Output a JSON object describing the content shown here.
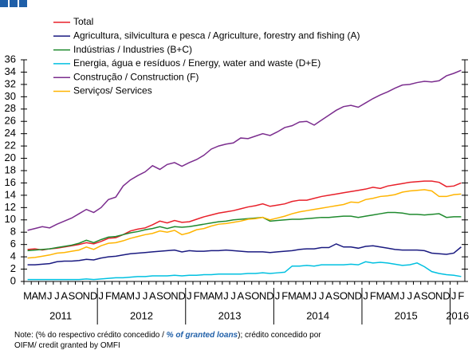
{
  "chart_data": {
    "type": "line",
    "categories": [
      "M",
      "A",
      "M",
      "J",
      "J",
      "A",
      "S",
      "O",
      "N",
      "D",
      "J",
      "F",
      "M",
      "A",
      "M",
      "J",
      "J",
      "A",
      "S",
      "O",
      "N",
      "D",
      "J",
      "F",
      "M",
      "A",
      "M",
      "J",
      "J",
      "A",
      "S",
      "O",
      "N",
      "D",
      "J",
      "F",
      "M",
      "A",
      "M",
      "J",
      "J",
      "A",
      "S",
      "O",
      "N",
      "D",
      "J",
      "F",
      "M",
      "A",
      "M",
      "J",
      "J",
      "A",
      "S",
      "O",
      "N",
      "D",
      "J",
      "F"
    ],
    "year_labels": [
      "2011",
      "2012",
      "2013",
      "2014",
      "2015",
      "2016"
    ],
    "ylim": [
      0,
      36
    ],
    "yticks": [
      0,
      2,
      4,
      6,
      8,
      10,
      12,
      14,
      16,
      18,
      20,
      22,
      24,
      26,
      28,
      30,
      32,
      34,
      36
    ],
    "grid": false,
    "series": [
      {
        "name": "Total",
        "color": "#e8202a",
        "values": [
          5.2,
          5.3,
          5.1,
          5.3,
          5.4,
          5.6,
          5.8,
          6.0,
          6.3,
          6.1,
          6.5,
          7.0,
          7.1,
          7.6,
          8.2,
          8.5,
          8.7,
          9.2,
          9.8,
          9.5,
          9.9,
          9.6,
          9.7,
          10.1,
          10.5,
          10.8,
          11.1,
          11.3,
          11.5,
          11.8,
          12.1,
          12.3,
          12.6,
          12.2,
          12.4,
          12.6,
          13.0,
          13.2,
          13.2,
          13.5,
          13.8,
          14.0,
          14.2,
          14.4,
          14.6,
          14.8,
          15.0,
          15.3,
          15.1,
          15.5,
          15.7,
          15.9,
          16.1,
          16.2,
          16.3,
          16.3,
          16.1,
          15.4,
          15.5,
          16.0
        ]
      },
      {
        "name": "Agricultura, silvicultura e pesca / Agriculture, forestry and fishing (A)",
        "color": "#1a1a80",
        "values": [
          2.7,
          2.7,
          2.8,
          2.9,
          3.2,
          3.3,
          3.3,
          3.4,
          3.6,
          3.5,
          3.8,
          4.0,
          4.1,
          4.3,
          4.5,
          4.6,
          4.7,
          4.8,
          4.9,
          5.0,
          5.1,
          4.8,
          5.0,
          4.9,
          4.9,
          5.0,
          5.0,
          5.1,
          5.0,
          4.9,
          4.8,
          4.8,
          4.8,
          4.7,
          4.8,
          4.9,
          5.0,
          5.2,
          5.3,
          5.3,
          5.5,
          5.5,
          6.1,
          5.6,
          5.6,
          5.4,
          5.7,
          5.8,
          5.6,
          5.4,
          5.2,
          5.1,
          5.1,
          5.1,
          5.0,
          4.6,
          4.5,
          4.4,
          4.6,
          5.6
        ]
      },
      {
        "name": "Indústrias / Industries (B+C)",
        "color": "#1f8a2e",
        "values": [
          5.0,
          5.1,
          5.2,
          5.3,
          5.5,
          5.7,
          5.9,
          6.2,
          6.7,
          6.3,
          6.8,
          7.2,
          7.3,
          7.6,
          7.9,
          8.1,
          8.4,
          8.6,
          8.9,
          8.6,
          8.9,
          8.8,
          8.9,
          9.1,
          9.3,
          9.5,
          9.7,
          9.8,
          10.0,
          10.1,
          10.2,
          10.3,
          10.4,
          9.8,
          9.9,
          10.0,
          10.1,
          10.1,
          10.2,
          10.3,
          10.4,
          10.4,
          10.5,
          10.6,
          10.6,
          10.4,
          10.6,
          10.8,
          11.0,
          11.2,
          11.2,
          11.1,
          10.9,
          10.9,
          10.8,
          10.9,
          11.0,
          10.4,
          10.5,
          10.5
        ]
      },
      {
        "name": "Energia, água e resíduos / Energy, water and waste (D+E)",
        "color": "#00c0e0",
        "values": [
          0.3,
          0.3,
          0.3,
          0.3,
          0.3,
          0.3,
          0.3,
          0.3,
          0.4,
          0.3,
          0.4,
          0.5,
          0.6,
          0.6,
          0.7,
          0.8,
          0.8,
          0.9,
          0.9,
          0.9,
          1.0,
          0.9,
          1.0,
          1.0,
          1.1,
          1.1,
          1.2,
          1.2,
          1.2,
          1.2,
          1.3,
          1.3,
          1.4,
          1.3,
          1.4,
          1.5,
          2.5,
          2.5,
          2.6,
          2.5,
          2.7,
          2.7,
          2.7,
          2.7,
          2.8,
          2.7,
          3.2,
          3.0,
          3.1,
          3.0,
          2.8,
          2.6,
          2.7,
          3.0,
          2.4,
          1.6,
          1.3,
          1.1,
          1.0,
          0.8
        ]
      },
      {
        "name": "Construção / Construction  (F)",
        "color": "#7b2d8e",
        "values": [
          8.3,
          8.6,
          8.9,
          8.7,
          9.3,
          9.8,
          10.3,
          11.0,
          11.7,
          11.2,
          12.0,
          13.3,
          13.7,
          15.5,
          16.5,
          17.2,
          17.8,
          18.8,
          18.2,
          19.0,
          19.3,
          18.7,
          19.3,
          19.8,
          20.5,
          21.5,
          22.0,
          22.3,
          22.5,
          23.3,
          23.2,
          23.6,
          24.0,
          23.7,
          24.3,
          25.0,
          25.3,
          25.9,
          26.0,
          25.4,
          26.2,
          27.0,
          27.8,
          28.4,
          28.6,
          28.3,
          29.0,
          29.7,
          30.3,
          30.8,
          31.4,
          31.9,
          32.0,
          32.3,
          32.5,
          32.4,
          32.6,
          33.4,
          33.8,
          34.3
        ]
      },
      {
        "name": "Serviços/ Services",
        "color": "#ffb400",
        "values": [
          3.8,
          3.9,
          4.1,
          4.3,
          4.6,
          4.7,
          4.9,
          5.1,
          5.6,
          5.2,
          5.8,
          6.2,
          6.3,
          6.6,
          7.0,
          7.3,
          7.6,
          7.8,
          8.2,
          8.0,
          8.3,
          7.6,
          7.9,
          8.4,
          8.6,
          9.0,
          9.3,
          9.4,
          9.6,
          9.8,
          10.1,
          10.2,
          10.4,
          10.0,
          10.3,
          10.6,
          11.0,
          11.3,
          11.5,
          11.7,
          11.9,
          12.1,
          12.3,
          12.5,
          12.9,
          12.8,
          13.3,
          13.5,
          13.8,
          13.9,
          14.1,
          14.5,
          14.7,
          14.8,
          14.9,
          14.7,
          13.8,
          13.8,
          14.1,
          14.2
        ]
      }
    ]
  },
  "note": {
    "parts": [
      "Note: (% do respectivo crédito concedido / ",
      "% of granted loans",
      "); crédito concedido por"
    ],
    "line2": "OIFM/ credit granted by OMFI"
  }
}
